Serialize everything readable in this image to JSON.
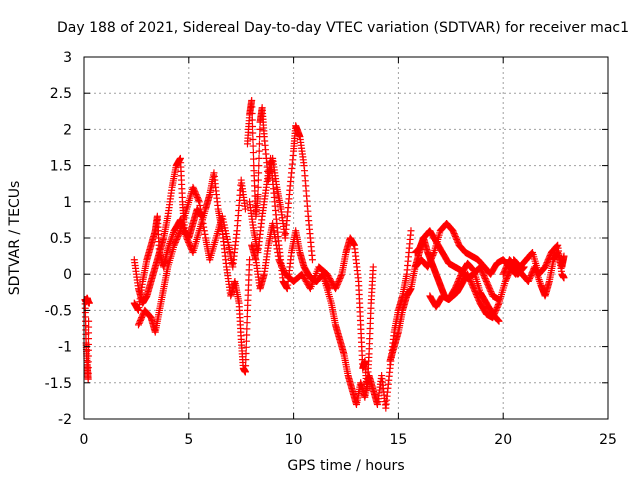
{
  "chart_data": {
    "type": "scatter",
    "title": "Day 188 of 2021, Sidereal Day-to-day VTEC variation (SDTVAR) for receiver mac1",
    "xlabel": "GPS time / hours",
    "ylabel": "SDTVAR / TECUs",
    "xlim": [
      0,
      25
    ],
    "ylim": [
      -2,
      3
    ],
    "xticks": [
      0,
      5,
      10,
      15,
      20,
      25
    ],
    "yticks": [
      -2,
      -1.5,
      -1,
      -0.5,
      0,
      0.5,
      1,
      1.5,
      2,
      2.5,
      3
    ],
    "grid": true,
    "marker": "+",
    "series": [
      {
        "name": "SDTVAR",
        "color": "#ff0000",
        "tracks": [
          [
            [
              0.05,
              -0.35
            ],
            [
              0.1,
              -0.95
            ],
            [
              0.15,
              -1.25
            ],
            [
              0.2,
              -1.45
            ],
            [
              0.22,
              -0.65
            ]
          ],
          [
            [
              0.05,
              -0.35
            ],
            [
              0.1,
              -0.38
            ],
            [
              0.15,
              -0.33
            ],
            [
              0.2,
              -0.38
            ],
            [
              0.25,
              -0.4
            ]
          ],
          [
            [
              2.4,
              0.2
            ],
            [
              2.6,
              -0.2
            ],
            [
              2.8,
              -0.4
            ],
            [
              3.0,
              -0.3
            ],
            [
              3.2,
              -0.1
            ],
            [
              3.4,
              0.1
            ],
            [
              3.6,
              0.3
            ],
            [
              3.8,
              0.5
            ],
            [
              4.0,
              0.8
            ],
            [
              4.2,
              1.2
            ],
            [
              4.4,
              1.5
            ],
            [
              4.6,
              1.6
            ],
            [
              4.7,
              1.0
            ],
            [
              4.8,
              0.6
            ],
            [
              5.0,
              0.5
            ],
            [
              5.2,
              0.7
            ],
            [
              5.4,
              0.9
            ],
            [
              5.6,
              0.8
            ]
          ],
          [
            [
              2.4,
              -0.4
            ],
            [
              2.6,
              -0.5
            ],
            [
              2.8,
              -0.1
            ],
            [
              3.0,
              0.2
            ],
            [
              3.2,
              0.4
            ],
            [
              3.4,
              0.6
            ],
            [
              3.5,
              0.8
            ],
            [
              3.6,
              0.3
            ],
            [
              3.8,
              0.1
            ],
            [
              4.0,
              0.35
            ],
            [
              4.3,
              0.6
            ],
            [
              4.6,
              0.75
            ],
            [
              4.9,
              0.5
            ],
            [
              5.2,
              0.3
            ],
            [
              5.5,
              0.6
            ],
            [
              5.8,
              0.9
            ],
            [
              6.0,
              1.1
            ],
            [
              6.2,
              1.4
            ],
            [
              6.4,
              0.9
            ],
            [
              6.6,
              0.6
            ],
            [
              6.8,
              0.1
            ],
            [
              7.0,
              -0.3
            ],
            [
              7.2,
              -0.1
            ],
            [
              7.4,
              -0.4
            ],
            [
              7.5,
              -0.9
            ],
            [
              7.6,
              -1.3
            ],
            [
              7.7,
              -1.35
            ],
            [
              7.8,
              -0.5
            ],
            [
              7.9,
              0.2
            ]
          ],
          [
            [
              2.6,
              -0.7
            ],
            [
              2.9,
              -0.5
            ],
            [
              3.2,
              -0.6
            ],
            [
              3.4,
              -0.8
            ],
            [
              3.6,
              -0.5
            ],
            [
              3.8,
              -0.2
            ],
            [
              4.0,
              0.1
            ],
            [
              4.3,
              0.4
            ],
            [
              4.6,
              0.6
            ],
            [
              4.9,
              0.9
            ],
            [
              5.2,
              1.2
            ],
            [
              5.5,
              1.0
            ],
            [
              5.8,
              0.5
            ],
            [
              6.0,
              0.2
            ],
            [
              6.3,
              0.5
            ],
            [
              6.6,
              0.8
            ],
            [
              6.9,
              0.4
            ],
            [
              7.1,
              0.1
            ],
            [
              7.3,
              0.6
            ],
            [
              7.5,
              1.3
            ],
            [
              7.7,
              0.9
            ]
          ],
          [
            [
              7.8,
              1.8
            ],
            [
              7.9,
              2.2
            ],
            [
              8.0,
              2.4
            ],
            [
              8.1,
              1.5
            ],
            [
              8.2,
              0.8
            ],
            [
              8.3,
              1.1
            ],
            [
              8.4,
              2.1
            ],
            [
              8.5,
              2.3
            ],
            [
              8.6,
              1.9
            ],
            [
              8.8,
              1.3
            ],
            [
              9.0,
              1.6
            ],
            [
              9.2,
              1.2
            ],
            [
              9.4,
              0.9
            ],
            [
              9.6,
              0.5
            ],
            [
              9.8,
              1.1
            ],
            [
              10.0,
              1.7
            ],
            [
              10.1,
              2.05
            ],
            [
              10.3,
              1.9
            ],
            [
              10.5,
              1.5
            ],
            [
              10.7,
              0.8
            ],
            [
              10.9,
              0.2
            ]
          ],
          [
            [
              7.9,
              1.0
            ],
            [
              8.1,
              0.6
            ],
            [
              8.3,
              0.3
            ],
            [
              8.5,
              0.8
            ],
            [
              8.7,
              1.2
            ],
            [
              8.9,
              1.6
            ],
            [
              9.1,
              1.0
            ],
            [
              9.3,
              0.4
            ],
            [
              9.5,
              -0.1
            ],
            [
              9.7,
              -0.2
            ],
            [
              9.9,
              0.3
            ],
            [
              10.1,
              0.6
            ],
            [
              10.3,
              0.3
            ],
            [
              10.5,
              0.1
            ],
            [
              10.8,
              -0.05
            ],
            [
              11.1,
              -0.1
            ],
            [
              11.4,
              0.0
            ],
            [
              11.7,
              -0.2
            ]
          ],
          [
            [
              8.0,
              0.4
            ],
            [
              8.2,
              0.2
            ],
            [
              8.4,
              -0.2
            ],
            [
              8.6,
              0.0
            ],
            [
              8.8,
              0.4
            ],
            [
              9.0,
              0.7
            ],
            [
              9.3,
              0.2
            ],
            [
              9.6,
              0.0
            ],
            [
              10.0,
              -0.1
            ],
            [
              10.4,
              0.0
            ],
            [
              10.8,
              -0.2
            ],
            [
              11.2,
              0.1
            ],
            [
              11.6,
              0.0
            ],
            [
              12.0,
              -0.2
            ],
            [
              12.3,
              0.0
            ],
            [
              12.5,
              0.3
            ],
            [
              12.7,
              0.5
            ],
            [
              12.9,
              0.4
            ],
            [
              13.1,
              -0.1
            ],
            [
              13.2,
              -0.7
            ],
            [
              13.3,
              -1.3
            ],
            [
              13.4,
              -1.2
            ],
            [
              13.5,
              -1.6
            ],
            [
              13.6,
              -1.1
            ],
            [
              13.7,
              -0.4
            ],
            [
              13.8,
              0.1
            ]
          ],
          [
            [
              11.5,
              -0.1
            ],
            [
              11.8,
              -0.4
            ],
            [
              12.0,
              -0.7
            ],
            [
              12.2,
              -0.9
            ],
            [
              12.4,
              -1.1
            ],
            [
              12.6,
              -1.4
            ],
            [
              12.8,
              -1.6
            ],
            [
              13.0,
              -1.8
            ],
            [
              13.2,
              -1.5
            ],
            [
              13.4,
              -1.7
            ],
            [
              13.6,
              -1.4
            ],
            [
              13.8,
              -1.6
            ],
            [
              14.0,
              -1.8
            ],
            [
              14.2,
              -1.4
            ],
            [
              14.4,
              -1.85
            ],
            [
              14.6,
              -1.3
            ],
            [
              14.8,
              -0.8
            ],
            [
              15.0,
              -0.5
            ],
            [
              15.2,
              -0.3
            ],
            [
              15.4,
              0.0
            ],
            [
              15.6,
              0.6
            ]
          ],
          [
            [
              14.6,
              -1.2
            ],
            [
              14.8,
              -1.0
            ],
            [
              15.0,
              -0.8
            ],
            [
              15.2,
              -0.5
            ],
            [
              15.4,
              -0.3
            ],
            [
              15.6,
              -0.2
            ],
            [
              15.8,
              0.1
            ],
            [
              16.0,
              0.3
            ],
            [
              16.2,
              0.5
            ],
            [
              16.4,
              0.3
            ],
            [
              16.6,
              0.15
            ],
            [
              16.8,
              0.0
            ],
            [
              17.0,
              -0.15
            ],
            [
              17.2,
              -0.3
            ],
            [
              17.4,
              -0.35
            ],
            [
              17.6,
              -0.3
            ],
            [
              17.8,
              -0.25
            ],
            [
              18.0,
              -0.15
            ],
            [
              18.3,
              0.0
            ],
            [
              18.6,
              -0.2
            ],
            [
              18.9,
              -0.4
            ],
            [
              19.2,
              -0.55
            ],
            [
              19.5,
              -0.6
            ],
            [
              19.8,
              -0.4
            ],
            [
              20.1,
              -0.1
            ],
            [
              20.4,
              0.1
            ],
            [
              20.7,
              0.0
            ],
            [
              21.0,
              0.1
            ]
          ],
          [
            [
              15.8,
              0.1
            ],
            [
              16.1,
              0.2
            ],
            [
              16.4,
              0.1
            ],
            [
              16.7,
              0.3
            ],
            [
              17.0,
              0.6
            ],
            [
              17.3,
              0.7
            ],
            [
              17.6,
              0.6
            ],
            [
              17.9,
              0.4
            ],
            [
              18.2,
              0.3
            ],
            [
              18.5,
              0.25
            ],
            [
              18.8,
              0.2
            ],
            [
              19.1,
              0.1
            ],
            [
              19.4,
              0.0
            ],
            [
              19.7,
              0.15
            ],
            [
              20.0,
              0.2
            ],
            [
              20.3,
              0.1
            ],
            [
              20.6,
              0.0
            ]
          ],
          [
            [
              15.8,
              0.3
            ],
            [
              16.0,
              0.35
            ],
            [
              16.2,
              0.5
            ],
            [
              16.5,
              0.6
            ],
            [
              16.8,
              0.45
            ],
            [
              17.1,
              0.3
            ],
            [
              17.4,
              0.15
            ],
            [
              17.7,
              0.1
            ],
            [
              18.0,
              0.05
            ],
            [
              18.3,
              -0.05
            ],
            [
              18.6,
              0.0
            ],
            [
              18.9,
              0.1
            ],
            [
              19.2,
              -0.1
            ],
            [
              19.5,
              -0.3
            ],
            [
              19.8,
              -0.35
            ]
          ],
          [
            [
              16.5,
              -0.3
            ],
            [
              16.8,
              -0.45
            ],
            [
              17.1,
              -0.3
            ],
            [
              17.4,
              -0.35
            ],
            [
              17.7,
              -0.2
            ],
            [
              18.0,
              0.0
            ],
            [
              18.3,
              0.15
            ],
            [
              18.6,
              0.05
            ],
            [
              18.9,
              -0.25
            ],
            [
              19.2,
              -0.4
            ],
            [
              19.5,
              -0.55
            ],
            [
              19.8,
              -0.65
            ]
          ],
          [
            [
              20.0,
              0.0
            ],
            [
              20.3,
              0.2
            ],
            [
              20.6,
              0.1
            ],
            [
              20.9,
              0.0
            ],
            [
              21.2,
              -0.1
            ],
            [
              21.5,
              0.1
            ],
            [
              21.8,
              -0.15
            ],
            [
              22.0,
              -0.3
            ],
            [
              22.2,
              -0.1
            ],
            [
              22.4,
              0.2
            ],
            [
              22.6,
              0.3
            ],
            [
              22.8,
              0.1
            ],
            [
              22.9,
              0.25
            ]
          ],
          [
            [
              20.5,
              0.2
            ],
            [
              20.8,
              0.1
            ],
            [
              21.1,
              0.2
            ],
            [
              21.4,
              0.3
            ],
            [
              21.7,
              0.0
            ],
            [
              22.0,
              0.1
            ],
            [
              22.3,
              0.3
            ],
            [
              22.6,
              0.4
            ],
            [
              22.8,
              0.0
            ],
            [
              22.9,
              -0.05
            ]
          ]
        ]
      }
    ]
  }
}
